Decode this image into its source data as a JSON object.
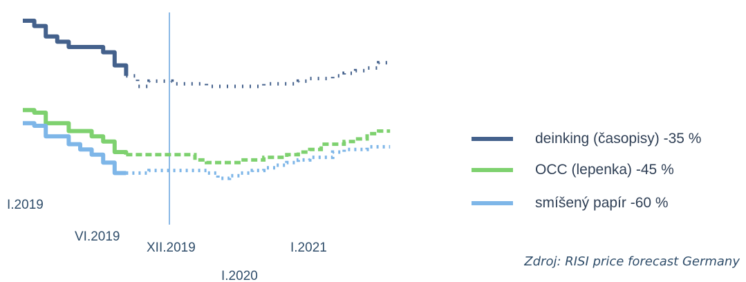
{
  "chart_data": {
    "type": "line",
    "title": "",
    "xlabel": "",
    "ylabel": "",
    "grid": false,
    "legend_position": "right",
    "x_tick_labels": [
      "I.2019",
      "VI.2019",
      "XII.2019",
      "I.2020",
      "I.2021"
    ],
    "divider_label": "XII.2019",
    "series": [
      {
        "name": "deinking (časopisy) -35 %",
        "color": "#44618c",
        "actual": [
          [
            0,
            100
          ],
          [
            1,
            98
          ],
          [
            2,
            94
          ],
          [
            3,
            92
          ],
          [
            4,
            90
          ],
          [
            5,
            90
          ],
          [
            6,
            90
          ],
          [
            7,
            88
          ],
          [
            8,
            83
          ],
          [
            9,
            79
          ]
        ],
        "forecast": [
          [
            9,
            79
          ],
          [
            10,
            75
          ],
          [
            11,
            77
          ],
          [
            12,
            77
          ],
          [
            13,
            76
          ],
          [
            14,
            76
          ],
          [
            15,
            76
          ],
          [
            16,
            75
          ],
          [
            17,
            75
          ],
          [
            18,
            75
          ],
          [
            19,
            75
          ],
          [
            20,
            75
          ],
          [
            21,
            76
          ],
          [
            22,
            76
          ],
          [
            23,
            76
          ],
          [
            24,
            77
          ],
          [
            25,
            78
          ],
          [
            26,
            78
          ],
          [
            27,
            79
          ],
          [
            28,
            80
          ],
          [
            29,
            81
          ],
          [
            30,
            82
          ],
          [
            31,
            84
          ],
          [
            32,
            84
          ]
        ]
      },
      {
        "name": "OCC (lepenka) -45 %",
        "color": "#7ed16f",
        "actual": [
          [
            0,
            66
          ],
          [
            1,
            65
          ],
          [
            2,
            61
          ],
          [
            3,
            61
          ],
          [
            4,
            58
          ],
          [
            5,
            58
          ],
          [
            6,
            56
          ],
          [
            7,
            54
          ],
          [
            8,
            50
          ],
          [
            9,
            49
          ]
        ],
        "forecast": [
          [
            9,
            49
          ],
          [
            10,
            49
          ],
          [
            11,
            49
          ],
          [
            12,
            49
          ],
          [
            13,
            49
          ],
          [
            14,
            49
          ],
          [
            15,
            47
          ],
          [
            16,
            46
          ],
          [
            17,
            46
          ],
          [
            18,
            46
          ],
          [
            19,
            47
          ],
          [
            20,
            47
          ],
          [
            21,
            48
          ],
          [
            22,
            48
          ],
          [
            23,
            49
          ],
          [
            24,
            50
          ],
          [
            25,
            51
          ],
          [
            26,
            53
          ],
          [
            27,
            53
          ],
          [
            28,
            54
          ],
          [
            29,
            55
          ],
          [
            30,
            57
          ],
          [
            31,
            58
          ],
          [
            32,
            58
          ]
        ]
      },
      {
        "name": "smíšený papír -60 %",
        "color": "#7eb6e8",
        "actual": [
          [
            0,
            61
          ],
          [
            1,
            60
          ],
          [
            2,
            56
          ],
          [
            3,
            56
          ],
          [
            4,
            53
          ],
          [
            5,
            51
          ],
          [
            6,
            49
          ],
          [
            7,
            46
          ],
          [
            8,
            42
          ],
          [
            9,
            42
          ]
        ],
        "forecast": [
          [
            9,
            42
          ],
          [
            10,
            42
          ],
          [
            11,
            43
          ],
          [
            12,
            43
          ],
          [
            13,
            43
          ],
          [
            14,
            43
          ],
          [
            15,
            43
          ],
          [
            16,
            42
          ],
          [
            17,
            40
          ],
          [
            18,
            41
          ],
          [
            19,
            42
          ],
          [
            20,
            43
          ],
          [
            21,
            44
          ],
          [
            22,
            45
          ],
          [
            23,
            46
          ],
          [
            24,
            47
          ],
          [
            25,
            48
          ],
          [
            26,
            48
          ],
          [
            27,
            50
          ],
          [
            28,
            51
          ],
          [
            29,
            51
          ],
          [
            30,
            52
          ],
          [
            31,
            52
          ],
          [
            32,
            52
          ]
        ]
      }
    ]
  },
  "source_note": "Zdroj: RISI price forecast Germany"
}
